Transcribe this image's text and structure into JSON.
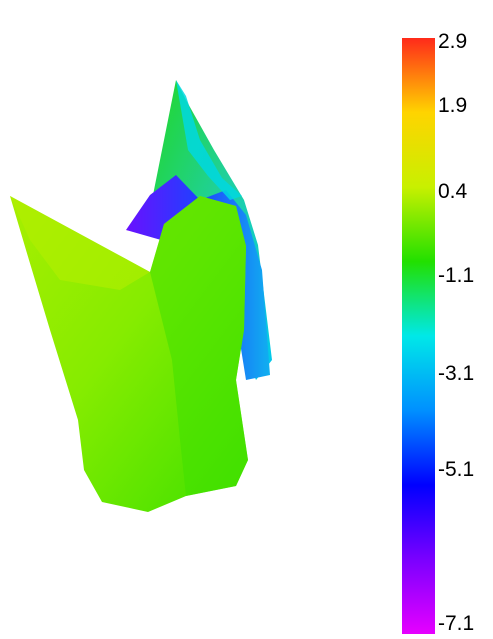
{
  "chart_data": {
    "type": "heatmap",
    "title": "",
    "colorbar": {
      "min": -7.1,
      "max": 2.9,
      "ticks": [
        "2.9",
        "1.9",
        "0.4",
        "-1.1",
        "-3.1",
        "-5.1",
        "-7.1"
      ],
      "tick_values": [
        2.9,
        1.9,
        0.4,
        -1.1,
        -3.1,
        -5.1,
        -7.1
      ],
      "colors_high_to_low": [
        "#ff2a1a",
        "#ffd400",
        "#c8f000",
        "#22e000",
        "#00e8e8",
        "#0090ff",
        "#0000ff",
        "#7a00ff",
        "#e600ff"
      ]
    },
    "surface": {
      "description_colors": {
        "front_face": "#8cf000",
        "front_face_shadow": "#44e400",
        "rear_fin": "#18d818",
        "rear_fin_edge": "#00c8e8",
        "inner_band": "#1a4cff",
        "inner_band_dark": "#7a10ff"
      }
    }
  }
}
